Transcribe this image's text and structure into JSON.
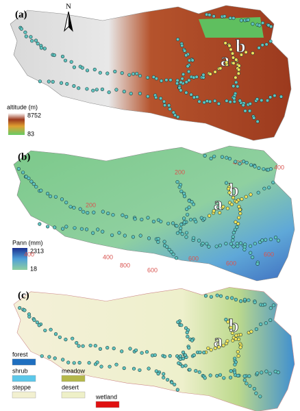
{
  "panels": [
    {
      "label": "(a)",
      "north": "N",
      "site_labels": [
        "a",
        "b"
      ],
      "legend": {
        "title": "altitude (m)",
        "max": "8752",
        "min": "83"
      }
    },
    {
      "label": "(b)",
      "site_labels": [
        "a",
        "b"
      ],
      "contour_labels": [
        "200",
        "200",
        "400",
        "400",
        "400",
        "400",
        "800",
        "600",
        "600",
        "600",
        "600"
      ],
      "legend": {
        "title": "Pann (mm)",
        "max": "2313",
        "min": "18"
      }
    },
    {
      "label": "(c)",
      "site_labels": [
        "a",
        "b"
      ],
      "legend": [
        "forest",
        "shrub",
        "meadow",
        "steppe",
        "desert",
        "wetland"
      ]
    }
  ]
}
